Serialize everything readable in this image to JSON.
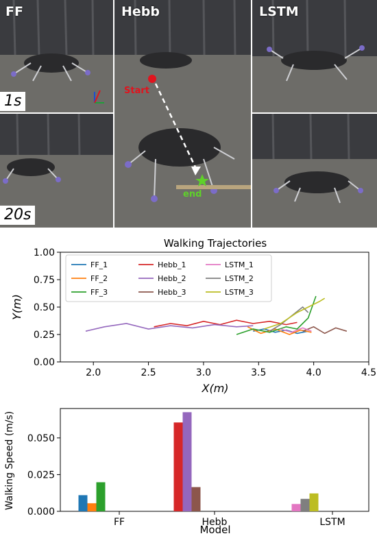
{
  "photos": {
    "columns": [
      "FF",
      "Hebb",
      "LSTM"
    ],
    "times": [
      "1s",
      "20s"
    ],
    "start_label": "Start",
    "end_label": "end"
  },
  "colors": {
    "FF_1": "#1f77b4",
    "FF_2": "#ff7f0e",
    "FF_3": "#2ca02c",
    "Hebb_1": "#d62728",
    "Hebb_2": "#9467bd",
    "Hebb_3": "#8c564b",
    "LSTM_1": "#e377c2",
    "LSTM_2": "#7f7f7f",
    "LSTM_3": "#bcbd22",
    "start_marker": "#e0141e",
    "end_marker": "#5fd12a"
  },
  "chart_data": [
    {
      "type": "line",
      "title": "Walking Trajectories",
      "xlabel": "X(m)",
      "ylabel": "Y(m)",
      "xlim": [
        1.7,
        4.5
      ],
      "ylim": [
        0.0,
        1.0
      ],
      "xticks": [
        "2.0",
        "2.5",
        "3.0",
        "3.5",
        "4.0",
        "4.5"
      ],
      "yticks": [
        "0.00",
        "0.25",
        "0.50",
        "0.75",
        "1.00"
      ],
      "legend": "upper-left",
      "series": [
        {
          "name": "FF_1",
          "x": [
            3.45,
            3.55,
            3.65,
            3.75,
            3.85,
            3.95
          ],
          "y": [
            0.28,
            0.3,
            0.27,
            0.29,
            0.26,
            0.28
          ]
        },
        {
          "name": "FF_2",
          "x": [
            3.4,
            3.52,
            3.65,
            3.78,
            3.88,
            3.98
          ],
          "y": [
            0.32,
            0.26,
            0.3,
            0.25,
            0.29,
            0.27
          ]
        },
        {
          "name": "FF_3",
          "x": [
            3.3,
            3.45,
            3.6,
            3.75,
            3.85,
            3.95,
            4.02
          ],
          "y": [
            0.25,
            0.3,
            0.27,
            0.32,
            0.3,
            0.4,
            0.6
          ]
        },
        {
          "name": "Hebb_1",
          "x": [
            2.55,
            2.7,
            2.85,
            3.0,
            3.15,
            3.3,
            3.45,
            3.6,
            3.75,
            3.85
          ],
          "y": [
            0.32,
            0.35,
            0.33,
            0.37,
            0.34,
            0.38,
            0.35,
            0.37,
            0.34,
            0.36
          ]
        },
        {
          "name": "Hebb_2",
          "x": [
            1.93,
            2.1,
            2.3,
            2.5,
            2.7,
            2.9,
            3.1,
            3.3,
            3.45
          ],
          "y": [
            0.28,
            0.32,
            0.35,
            0.3,
            0.33,
            0.31,
            0.34,
            0.32,
            0.33
          ]
        },
        {
          "name": "Hebb_3",
          "x": [
            3.9,
            4.0,
            4.1,
            4.2,
            4.3
          ],
          "y": [
            0.28,
            0.32,
            0.26,
            0.31,
            0.28
          ]
        },
        {
          "name": "LSTM_1",
          "x": [
            3.7,
            3.8,
            3.9,
            3.98
          ],
          "y": [
            0.3,
            0.27,
            0.31,
            0.28
          ]
        },
        {
          "name": "LSTM_2",
          "x": [
            3.6,
            3.7,
            3.8,
            3.9,
            3.95
          ],
          "y": [
            0.28,
            0.34,
            0.42,
            0.5,
            0.45
          ]
        },
        {
          "name": "LSTM_3",
          "x": [
            3.55,
            3.7,
            3.85,
            3.95,
            4.05,
            4.1
          ],
          "y": [
            0.3,
            0.35,
            0.45,
            0.5,
            0.55,
            0.58
          ]
        }
      ]
    },
    {
      "type": "bar",
      "xlabel": "Model",
      "ylabel": "Walking Speed (m/s)",
      "categories": [
        "FF",
        "Hebb",
        "LSTM"
      ],
      "ylim": [
        0.0,
        0.07
      ],
      "yticks": [
        "0.000",
        "0.025",
        "0.050"
      ],
      "series": [
        {
          "name": "FF_1",
          "group": "FF",
          "value": 0.011
        },
        {
          "name": "FF_2",
          "group": "FF",
          "value": 0.0055
        },
        {
          "name": "FF_3",
          "group": "FF",
          "value": 0.0198
        },
        {
          "name": "Hebb_1",
          "group": "Hebb",
          "value": 0.0605
        },
        {
          "name": "Hebb_2",
          "group": "Hebb",
          "value": 0.0675
        },
        {
          "name": "Hebb_3",
          "group": "Hebb",
          "value": 0.0165
        },
        {
          "name": "LSTM_1",
          "group": "LSTM",
          "value": 0.005
        },
        {
          "name": "LSTM_2",
          "group": "LSTM",
          "value": 0.0085
        },
        {
          "name": "LSTM_3",
          "group": "LSTM",
          "value": 0.0122
        }
      ]
    }
  ]
}
